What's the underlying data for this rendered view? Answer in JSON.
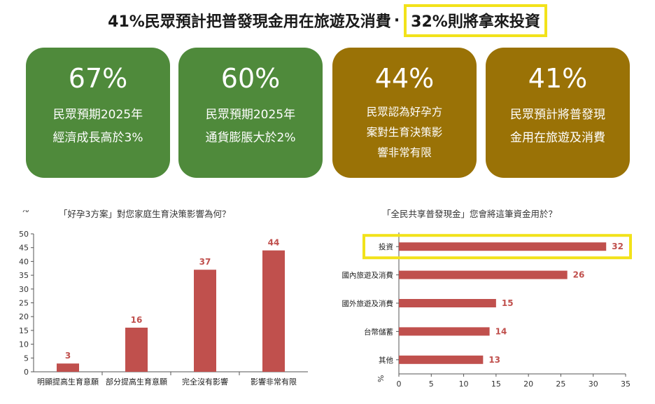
{
  "headline": {
    "main": "41%民眾預計把普發現金用在旅遊及消費",
    "separator": "·",
    "highlight": "32%則將拿來投資"
  },
  "cards": [
    {
      "pct": "67%",
      "line1": "民眾預期2025年",
      "line2": "經濟成長高於3%",
      "line3": "",
      "color": "#4f8a3b"
    },
    {
      "pct": "60%",
      "line1": "民眾預期2025年",
      "line2": "通貨膨脹大於2%",
      "line3": "",
      "color": "#4f8a3b"
    },
    {
      "pct": "44%",
      "line1": "民眾認為好孕方",
      "line2": "案對生育決策影",
      "line3": "響非常有限",
      "color": "#9a7206"
    },
    {
      "pct": "41%",
      "line1": "民眾預計將普發現",
      "line2": "金用在旅遊及消費",
      "line3": "",
      "color": "#9a7206"
    }
  ],
  "chart_data": [
    {
      "type": "bar",
      "title": "「好孕3方案」對您家庭生育決策影響為何？",
      "ylabel": "%",
      "xlabel": "",
      "categories": [
        "明顯提高生育意願",
        "部分提高生育意願",
        "完全沒有影響",
        "影響非常有限"
      ],
      "values": [
        3,
        16,
        37,
        44
      ],
      "ylim": [
        0,
        50
      ],
      "yticks": [
        0,
        5,
        10,
        15,
        20,
        25,
        30,
        35,
        40,
        45,
        50
      ],
      "grid": false,
      "bar_color": "#c0504d",
      "label_color": "#c0504d"
    },
    {
      "type": "bar",
      "orientation": "horizontal",
      "title": "「全民共享普發現金」您會將這筆資金用於？",
      "xlabel": "%",
      "ylabel": "",
      "categories": [
        "投資",
        "國內旅遊及消費",
        "國外旅遊及消費",
        "台幣儲蓄",
        "其他"
      ],
      "values": [
        32,
        26,
        15,
        14,
        13
      ],
      "xlim": [
        0,
        35
      ],
      "xticks": [
        0,
        5,
        10,
        15,
        20,
        25,
        30,
        35
      ],
      "grid": false,
      "highlight_category": "投資",
      "bar_color": "#c0504d",
      "label_color": "#c0504d",
      "highlight_color": "#f2e21a"
    }
  ]
}
